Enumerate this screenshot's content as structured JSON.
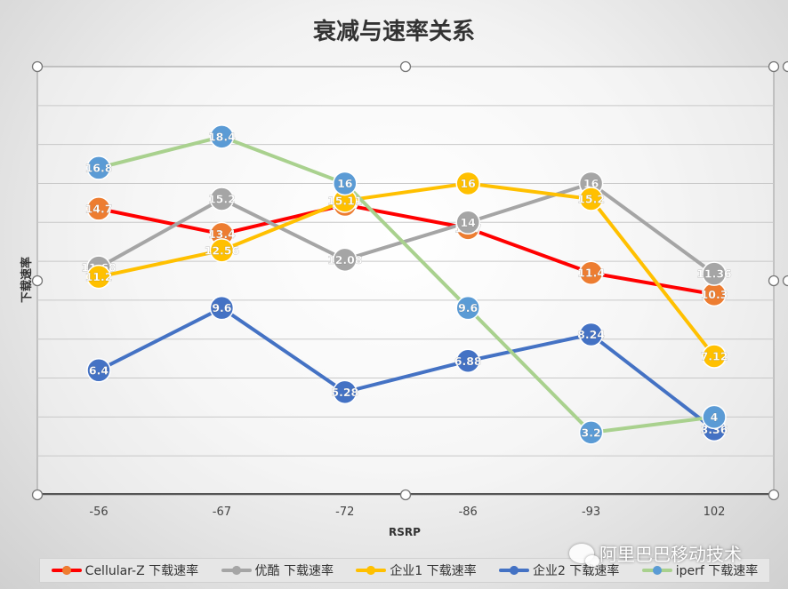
{
  "chart_data": {
    "type": "line",
    "title": "衰减与速率关系",
    "xlabel": "RSRP",
    "ylabel": "下载速率",
    "categories": [
      "-56",
      "-67",
      "-72",
      "-86",
      "-93",
      "102"
    ],
    "ylim": [
      0,
      22
    ],
    "grid": true,
    "legend_position": "bottom",
    "series": [
      {
        "name": "Cellular-Z 下载速率",
        "line_color": "#ff0000",
        "marker_color": "#ed7d31",
        "values": [
          14.7,
          13.4,
          14.9,
          13.7,
          11.4,
          10.3
        ]
      },
      {
        "name": "优酷 下载速率",
        "line_color": "#a5a5a5",
        "marker_color": "#a5a5a5",
        "values": [
          11.68,
          15.2,
          12.08,
          14,
          16,
          11.36
        ]
      },
      {
        "name": "企业1 下载速率",
        "line_color": "#ffc000",
        "marker_color": "#ffc000",
        "values": [
          11.2,
          12.56,
          15.11,
          16,
          15.2,
          7.12
        ]
      },
      {
        "name": "企业2 下载速率",
        "line_color": "#4472c4",
        "marker_color": "#4472c4",
        "values": [
          6.4,
          9.6,
          5.28,
          6.88,
          8.24,
          3.36
        ]
      },
      {
        "name": "iperf 下载速率",
        "line_color": "#a9d18e",
        "marker_color": "#5b9bd5",
        "values": [
          16.8,
          18.4,
          16,
          9.6,
          3.2,
          4
        ]
      }
    ]
  },
  "watermark": {
    "text": "阿里巴巴移动技术",
    "icon": "wechat-icon"
  }
}
